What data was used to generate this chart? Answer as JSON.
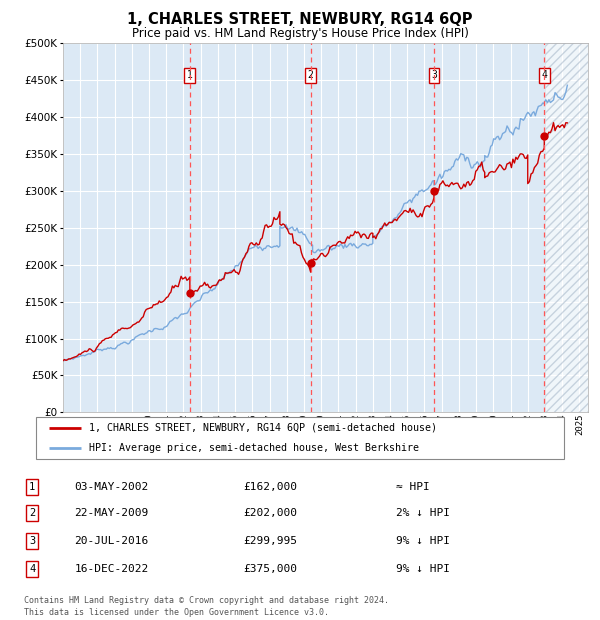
{
  "title": "1, CHARLES STREET, NEWBURY, RG14 6QP",
  "subtitle": "Price paid vs. HM Land Registry's House Price Index (HPI)",
  "ytick_values": [
    0,
    50000,
    100000,
    150000,
    200000,
    250000,
    300000,
    350000,
    400000,
    450000,
    500000
  ],
  "ylim": [
    0,
    500000
  ],
  "xlim_start": 1995.0,
  "xlim_end": 2025.5,
  "plot_bg_color": "#dce9f5",
  "grid_color": "#ffffff",
  "red_line_color": "#cc0000",
  "blue_line_color": "#7aaadd",
  "dashed_line_color": "#ff5555",
  "dot_color": "#cc0000",
  "sale_dates": [
    2002.37,
    2009.39,
    2016.55,
    2022.96
  ],
  "sale_prices": [
    162000,
    202000,
    299995,
    375000
  ],
  "sale_labels": [
    "1",
    "2",
    "3",
    "4"
  ],
  "legend_red_label": "1, CHARLES STREET, NEWBURY, RG14 6QP (semi-detached house)",
  "legend_blue_label": "HPI: Average price, semi-detached house, West Berkshire",
  "table_rows": [
    {
      "num": "1",
      "date": "03-MAY-2002",
      "price": "£162,000",
      "hpi": "≈ HPI"
    },
    {
      "num": "2",
      "date": "22-MAY-2009",
      "price": "£202,000",
      "hpi": "2% ↓ HPI"
    },
    {
      "num": "3",
      "date": "20-JUL-2016",
      "price": "£299,995",
      "hpi": "9% ↓ HPI"
    },
    {
      "num": "4",
      "date": "16-DEC-2022",
      "price": "£375,000",
      "hpi": "9% ↓ HPI"
    }
  ],
  "footnote": "Contains HM Land Registry data © Crown copyright and database right 2024.\nThis data is licensed under the Open Government Licence v3.0.",
  "future_hatch_start": 2023.0
}
